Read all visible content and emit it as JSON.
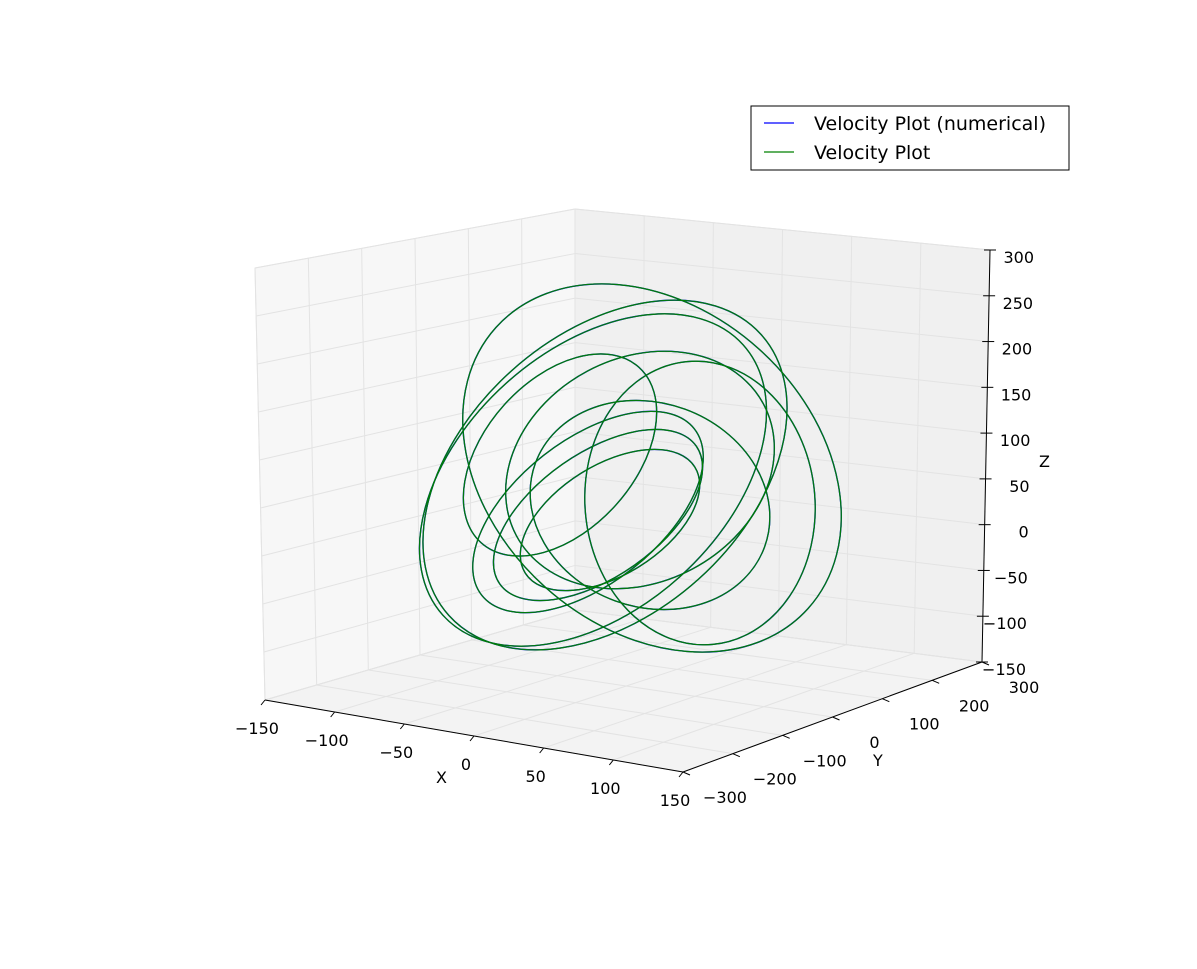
{
  "chart_data": {
    "type": "line",
    "projection": "3d",
    "title": "",
    "xlabel": "X",
    "ylabel": "Y",
    "zlabel": "Z",
    "xlim": [
      -150,
      150
    ],
    "ylim": [
      -300,
      300
    ],
    "zlim": [
      -150,
      300
    ],
    "x_ticks": [
      -150,
      -100,
      -50,
      0,
      50,
      100,
      150
    ],
    "y_ticks": [
      -300,
      -200,
      -100,
      0,
      100,
      200,
      300
    ],
    "z_ticks": [
      -150,
      -100,
      -50,
      0,
      50,
      100,
      150,
      200,
      250,
      300
    ],
    "x_tick_labels": [
      "−150",
      "−100",
      "−50",
      "0",
      "50",
      "100",
      "150"
    ],
    "y_tick_labels": [
      "−300",
      "−200",
      "−100",
      "0",
      "100",
      "200",
      "300"
    ],
    "z_tick_labels": [
      "−150",
      "−100",
      "−50",
      "0",
      "50",
      "100",
      "150",
      "200",
      "250",
      "300"
    ],
    "grid": true,
    "legend": {
      "position": "top-right",
      "entries": [
        {
          "label": "Velocity Plot (numerical)",
          "color": "#0000ff"
        },
        {
          "label": "Velocity Plot",
          "color": "#008000"
        }
      ]
    },
    "series": [
      {
        "name": "Velocity Plot (numerical)",
        "color": "#0000ff",
        "description": "3D trajectory, nearly identical to the analytic curve"
      },
      {
        "name": "Velocity Plot",
        "color": "#008000",
        "description": "3D trajectory of interleaved elliptical loops"
      }
    ]
  }
}
